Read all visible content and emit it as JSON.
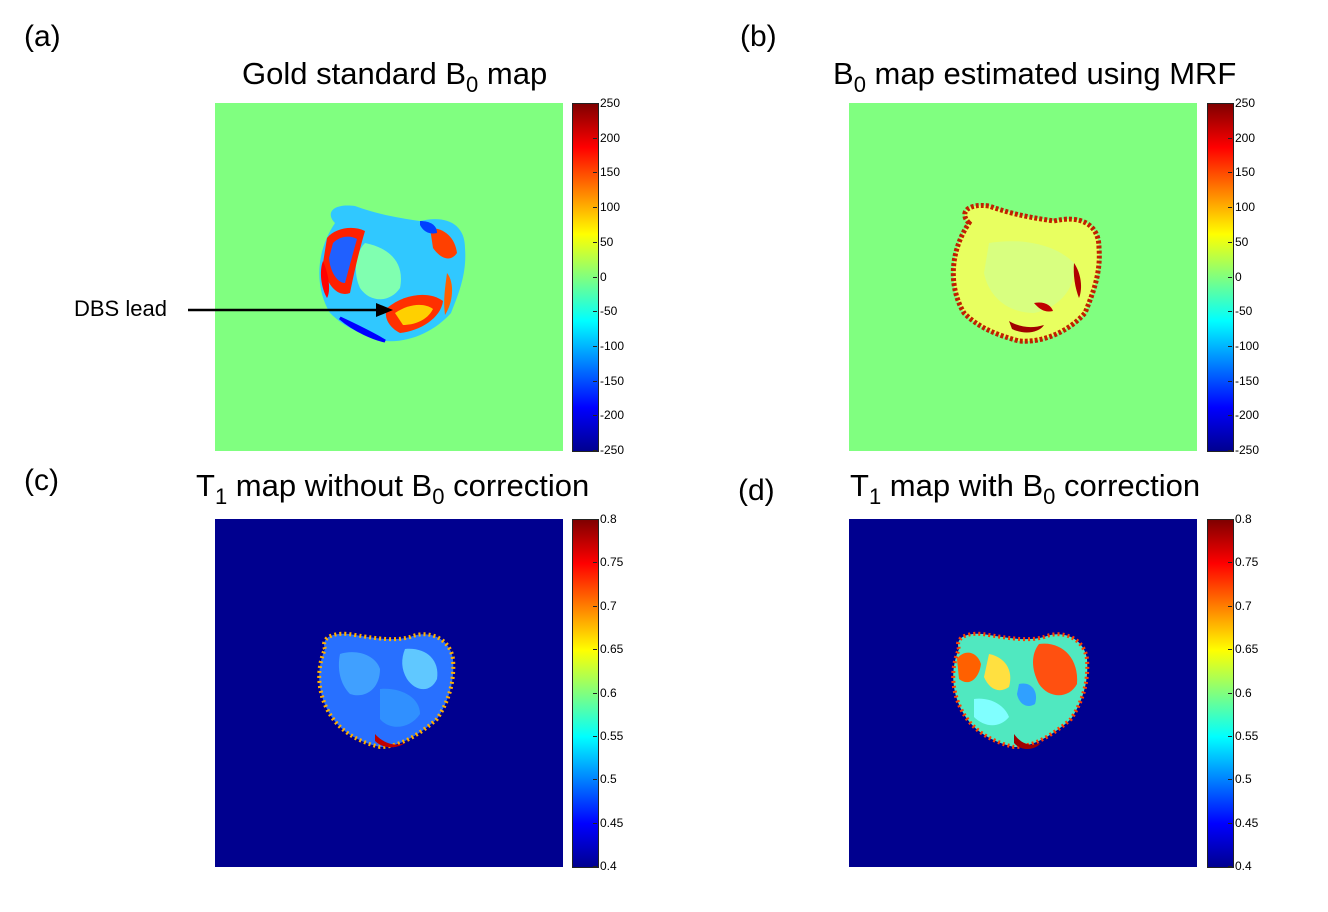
{
  "panels": [
    {
      "id": "a",
      "label": "(a)",
      "title_pre": "Gold standard B",
      "title_sub": "0",
      "title_post": " map",
      "cbar_ticks": [
        "250",
        "200",
        "150",
        "100",
        "50",
        "0",
        "-50",
        "-100",
        "-150",
        "-200",
        "-250"
      ]
    },
    {
      "id": "b",
      "label": "(b)",
      "title_pre": "B",
      "title_sub": "0",
      "title_post": " map estimated using MRF",
      "cbar_ticks": [
        "250",
        "200",
        "150",
        "100",
        "50",
        "0",
        "-50",
        "-100",
        "-150",
        "-200",
        "-250"
      ]
    },
    {
      "id": "c",
      "label": "(c)",
      "title_pre": "T",
      "title_sub": "1",
      "title_post": " map without B",
      "title_sub2": "0",
      "title_post2": " correction",
      "cbar_ticks": [
        "0.8",
        "0.75",
        "0.7",
        "0.65",
        "0.6",
        "0.55",
        "0.5",
        "0.45",
        "0.4"
      ]
    },
    {
      "id": "d",
      "label": "(d)",
      "title_pre": "T",
      "title_sub": "1",
      "title_post": " map with B",
      "title_sub2": "0",
      "title_post2": " correction",
      "cbar_ticks": [
        "0.8",
        "0.75",
        "0.7",
        "0.65",
        "0.6",
        "0.55",
        "0.5",
        "0.45",
        "0.4"
      ]
    }
  ],
  "annotation": {
    "text": "DBS lead"
  },
  "colormap": {
    "name": "jet",
    "background_b0": "#80ff80",
    "background_t1": "#00008f"
  }
}
